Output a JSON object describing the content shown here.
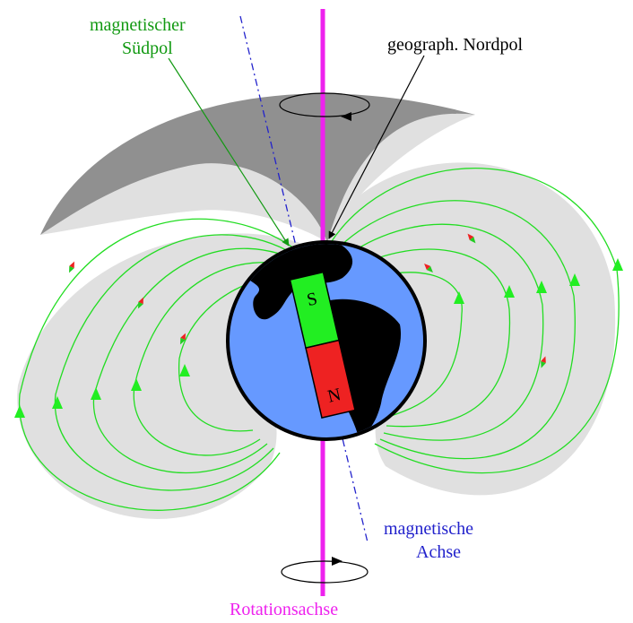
{
  "labels": {
    "magnetic_south_line1": "magnetischer",
    "magnetic_south_line2": "Südpol",
    "geographic_north": "geograph. Nordpol",
    "magnetic_axis_line1": "magnetische",
    "magnetic_axis_line2": "Achse",
    "rotation_axis": "Rotationsachse",
    "magnet_south": "S",
    "magnet_north": "N"
  },
  "colors": {
    "field_line": "#22dd22",
    "rotation_axis": "#ee22ee",
    "magnetic_axis": "#2222cc",
    "earth": "#6699ff",
    "land": "#000000",
    "field_region": "#e0e0e0",
    "shadow": "#909090",
    "magnet_south": "#22ee22",
    "magnet_north": "#ee2222",
    "label_green": "#119911",
    "label_blue": "#2222cc",
    "label_magenta": "#ee22ee"
  }
}
